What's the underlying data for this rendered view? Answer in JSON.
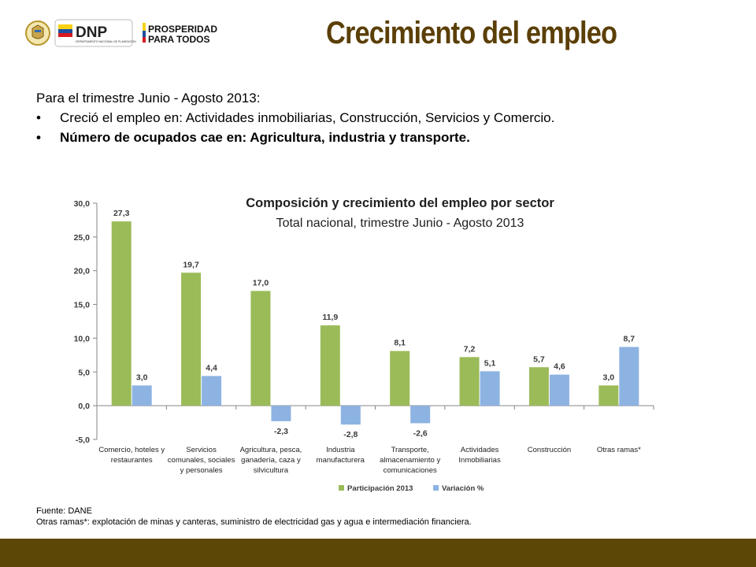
{
  "header": {
    "title": "Crecimiento del empleo",
    "logo_dnp_text": "DNP",
    "logo_dnp_subtext": "DEPARTAMENTO NACIONAL DE PLANEACIÓN",
    "logo_prosperidad_line1": "PROSPERIDAD",
    "logo_prosperidad_line2": "PARA TODOS"
  },
  "summary": {
    "intro": "Para el trimestre Junio - Agosto 2013:",
    "bullets": [
      "Creció el empleo en: Actividades inmobiliarias, Construcción, Servicios y Comercio.",
      "Número de ocupados cae en: Agricultura, industria y transporte."
    ]
  },
  "chart_data": {
    "type": "bar",
    "title": "Composición y crecimiento del empleo por sector",
    "subtitle": "Total nacional, trimestre Junio - Agosto 2013",
    "categories": [
      [
        "Comercio, hoteles y",
        "restaurantes"
      ],
      [
        "Servicios",
        "comunales, sociales",
        "y personales"
      ],
      [
        "Agricultura, pesca,",
        "ganadería, caza y",
        "silvicultura"
      ],
      [
        "Industria",
        "manufacturera"
      ],
      [
        "Transporte,",
        "almacenamiento y",
        "comunicaciones"
      ],
      [
        "Actividades",
        "Inmobiliarias"
      ],
      [
        "Construcción"
      ],
      [
        "Otras ramas*"
      ]
    ],
    "series": [
      {
        "name": "Participación 2013",
        "color": "#9bbb59",
        "values": [
          27.3,
          19.7,
          17.0,
          11.9,
          8.1,
          7.2,
          5.7,
          3.0
        ],
        "labels": [
          "27,3",
          "19,7",
          "17,0",
          "11,9",
          "8,1",
          "7,2",
          "5,7",
          "3,0"
        ]
      },
      {
        "name": "Variación %",
        "color": "#8db3e2",
        "values": [
          3.0,
          4.4,
          -2.3,
          -2.8,
          -2.6,
          5.1,
          4.6,
          8.7
        ],
        "labels": [
          "3,0",
          "4,4",
          "-2,3",
          "-2,8",
          "-2,6",
          "5,1",
          "4,6",
          "8,7"
        ]
      }
    ],
    "ylim": [
      -5,
      30
    ],
    "yticks": [
      -5,
      0,
      5,
      10,
      15,
      20,
      25,
      30
    ],
    "ytick_labels": [
      "-5,0",
      "0,0",
      "5,0",
      "10,0",
      "15,0",
      "20,0",
      "25,0",
      "30,0"
    ],
    "grid": false,
    "legend_position": "bottom"
  },
  "footnote": {
    "source": "Fuente: DANE",
    "note": "Otras ramas*:  explotación de minas y canteras, suministro de electricidad gas y agua e intermediación financiera."
  },
  "colors": {
    "title": "#5b3f07",
    "bottom_bar": "#5d4706"
  }
}
